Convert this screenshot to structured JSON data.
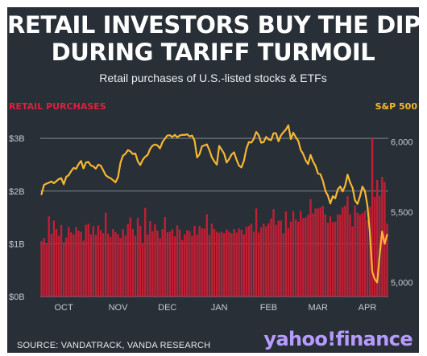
{
  "headline": {
    "line1": "RETAIL INVESTORS BUY THE DIP",
    "line2": "DURING TARIFF TURMOIL"
  },
  "subtitle": "Retail purchases of U.S.-listed stocks & ETFs",
  "source": "SOURCE: VANDATRACK, VANDA RESEARCH",
  "brand": "yahoo!finance",
  "colors": {
    "background": "#282f37",
    "bars": "#c21f35",
    "sp500_line": "#f6b731",
    "left_axis_label": "#e0203c",
    "right_axis_label": "#f6b731",
    "gridline": "#7b838c",
    "tick_text": "#c5cacf",
    "brand": "#b79bff"
  },
  "chart_data": {
    "type": "bar+line",
    "x": [
      0,
      1,
      2,
      3,
      4,
      5,
      6,
      7,
      8,
      9,
      10,
      11,
      12,
      13,
      14,
      15,
      16,
      17,
      18,
      19,
      20,
      21,
      22,
      23,
      24,
      25,
      26,
      27,
      28,
      29,
      30,
      31,
      32,
      33,
      34,
      35,
      36,
      37,
      38,
      39,
      40,
      41,
      42,
      43,
      44,
      45,
      46,
      47,
      48,
      49,
      50,
      51,
      52,
      53,
      54,
      55,
      56,
      57,
      58,
      59,
      60,
      61,
      62,
      63,
      64,
      65,
      66,
      67,
      68,
      69,
      70,
      71,
      72,
      73,
      74,
      75,
      76,
      77,
      78,
      79,
      80,
      81,
      82,
      83,
      84,
      85,
      86,
      87,
      88,
      89,
      90,
      91,
      92,
      93,
      94,
      95,
      96,
      97,
      98,
      99,
      100,
      101,
      102,
      103,
      104,
      105,
      106,
      107,
      108,
      109,
      110,
      111,
      112,
      113,
      114,
      115,
      116,
      117,
      118,
      119,
      120,
      121,
      122,
      123,
      124,
      125,
      126,
      127,
      128,
      129,
      130,
      131,
      132,
      133,
      134,
      135,
      136,
      137,
      138,
      139,
      140
    ],
    "x_ticks": [
      {
        "x": 9,
        "label": "OCT"
      },
      {
        "x": 31,
        "label": "NOV"
      },
      {
        "x": 51,
        "label": "DEC"
      },
      {
        "x": 72,
        "label": "JAN"
      },
      {
        "x": 92,
        "label": "FEB"
      },
      {
        "x": 112,
        "label": "MAR"
      },
      {
        "x": 132,
        "label": "APR"
      }
    ],
    "left_axis": {
      "label": "RETAIL PURCHASES",
      "ylim": [
        0,
        3.2
      ],
      "ticks": [
        0,
        1,
        2,
        3
      ],
      "tick_labels": [
        "$0B",
        "$1B",
        "$2B",
        "$3B"
      ]
    },
    "right_axis": {
      "label": "S&P 500",
      "ylim": [
        4900,
        6100
      ],
      "ticks": [
        5000,
        5500,
        6000
      ],
      "tick_labels": [
        "5,000",
        "5,500",
        "6,000"
      ]
    },
    "grid": true,
    "series": [
      {
        "name": "RETAIL PURCHASES",
        "type": "bar",
        "axis": "left",
        "values": [
          1.05,
          1.11,
          0.98,
          1.52,
          1.19,
          1.44,
          1.28,
          1.15,
          1.36,
          1.03,
          1.12,
          1.32,
          1.22,
          1.18,
          1.32,
          1.25,
          1.23,
          1.06,
          1.36,
          1.38,
          1.18,
          1.34,
          1.17,
          1.35,
          1.26,
          1.2,
          1.59,
          1.19,
          1.13,
          1.28,
          1.22,
          1.18,
          1.11,
          1.28,
          1.16,
          1.37,
          1.5,
          1.28,
          1.15,
          1.49,
          1.34,
          1.01,
          1.68,
          1.18,
          1.43,
          1.24,
          1.37,
          1.25,
          1.11,
          1.28,
          1.51,
          1.22,
          1.23,
          1.28,
          1.14,
          1.35,
          1.27,
          1.07,
          1.18,
          1.26,
          1.24,
          1.15,
          1.34,
          1.18,
          1.34,
          1.29,
          1.29,
          1.56,
          1.17,
          1.38,
          1.28,
          1.23,
          1.21,
          1.23,
          1.2,
          1.27,
          1.23,
          1.2,
          1.28,
          1.21,
          1.29,
          1.27,
          1.18,
          1.32,
          1.34,
          1.38,
          1.23,
          1.67,
          1.21,
          1.31,
          1.38,
          1.33,
          1.39,
          1.48,
          1.66,
          1.36,
          1.44,
          1.44,
          1.2,
          1.61,
          1.3,
          1.42,
          1.62,
          1.46,
          1.42,
          1.62,
          1.49,
          1.5,
          1.55,
          1.85,
          1.58,
          1.67,
          1.67,
          1.69,
          1.72,
          1.56,
          1.4,
          1.52,
          1.41,
          1.42,
          1.56,
          1.55,
          1.69,
          1.72,
          1.9,
          1.56,
          1.33,
          1.73,
          1.59,
          1.55,
          1.58,
          1.62,
          1.45,
          1.7,
          3.0,
          1.89,
          2.21,
          1.91,
          2.27,
          2.17,
          1.38
        ]
      },
      {
        "name": "S&P 500",
        "type": "line",
        "axis": "right",
        "values": [
          5627,
          5693,
          5703,
          5709,
          5718,
          5706,
          5720,
          5735,
          5742,
          5699,
          5751,
          5762,
          5792,
          5815,
          5808,
          5841,
          5864,
          5811,
          5853,
          5857,
          5832,
          5825,
          5809,
          5838,
          5831,
          5798,
          5763,
          5749,
          5741,
          5727,
          5712,
          5749,
          5853,
          5902,
          5915,
          5941,
          5932,
          5913,
          5917,
          5862,
          5835,
          5872,
          5894,
          5907,
          5950,
          5973,
          5981,
          5975,
          5953,
          5998,
          6023,
          6045,
          6047,
          6034,
          6050,
          6032,
          6045,
          6050,
          6049,
          6054,
          6038,
          6045,
          6009,
          5889,
          5911,
          5968,
          5975,
          5982,
          5942,
          5891,
          5862,
          5838,
          5971,
          5944,
          5915,
          5853,
          5878,
          5910,
          5925,
          5873,
          5831,
          5818,
          5866,
          5950,
          5998,
          5995,
          6021,
          6071,
          6047,
          5994,
          5998,
          6035,
          6017,
          6012,
          6061,
          6061,
          6004,
          6046,
          6068,
          6088,
          6118,
          6020,
          6065,
          6033,
          6007,
          5943,
          5914,
          5869,
          5842,
          5907,
          5860,
          5830,
          5775,
          5770,
          5723,
          5651,
          5619,
          5561,
          5614,
          5598,
          5661,
          5683,
          5647,
          5688,
          5767,
          5712,
          5673,
          5585,
          5558,
          5612,
          5682,
          5651,
          5549,
          5362,
          5075,
          5025,
          5000,
          5200,
          5363,
          5275,
          5340
        ]
      }
    ]
  }
}
